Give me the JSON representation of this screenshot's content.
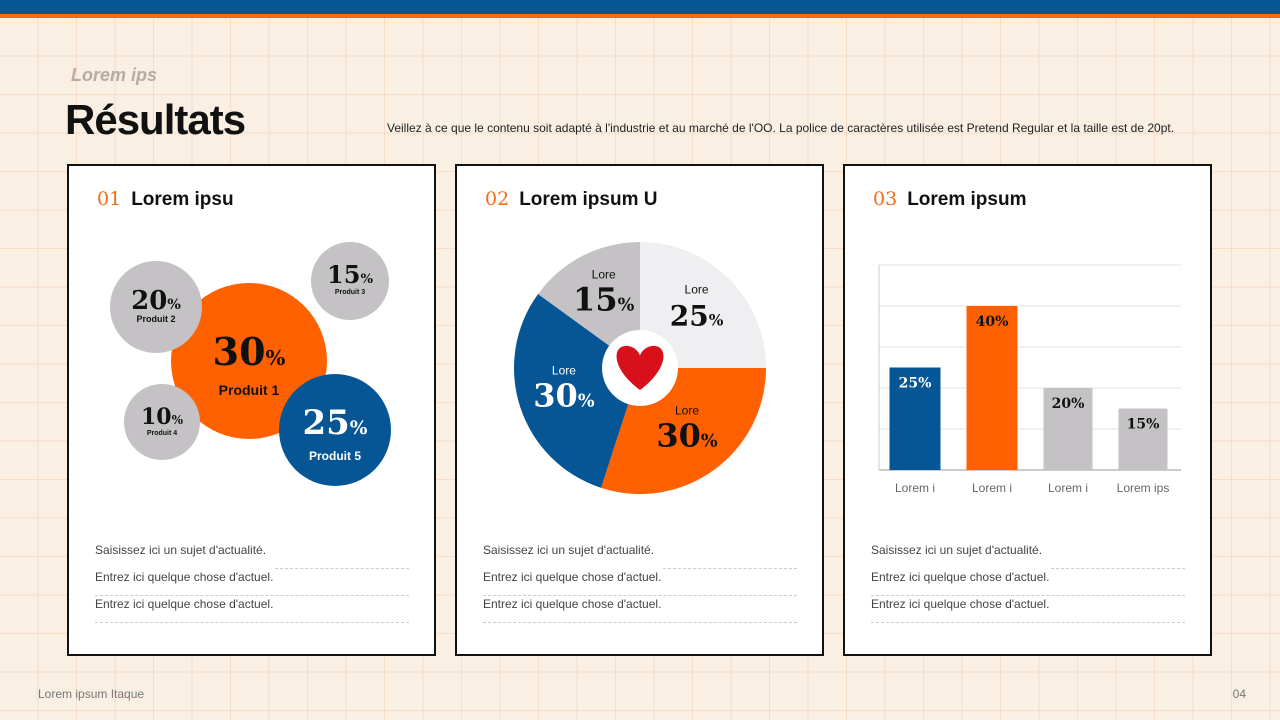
{
  "header": {
    "eyebrow": "Lorem ips",
    "title": "Résultats",
    "description": "Veillez à ce que le contenu soit adapté à l'industrie et au marché de l'OO. La police de caractères utilisée est Pretend Regular et la taille est de 20pt."
  },
  "colors": {
    "blue": "#065696",
    "orange": "#ff6100",
    "gray": "#c4c2c4",
    "light": "#efeef0"
  },
  "cards": [
    {
      "num": "01",
      "title": "Lorem ipsu",
      "notes": [
        "Saisissez ici un sujet d'actualité.",
        "Entrez ici quelque chose d'actuel.",
        "Entrez ici quelque chose d'actuel."
      ]
    },
    {
      "num": "02",
      "title": "Lorem ipsum U",
      "notes": [
        "Saisissez ici un sujet d'actualité.",
        "Entrez ici quelque chose d'actuel.",
        "Entrez ici quelque chose d'actuel."
      ]
    },
    {
      "num": "03",
      "title": "Lorem ipsum",
      "notes": [
        "Saisissez ici un sujet d'actualité.",
        "Entrez ici quelque chose d'actuel.",
        "Entrez ici quelque chose d'actuel."
      ]
    }
  ],
  "chart_data": [
    {
      "type": "bubble",
      "items": [
        {
          "label": "Produit 1",
          "value": "30",
          "color": "orange"
        },
        {
          "label": "Produit 2",
          "value": "20",
          "color": "gray"
        },
        {
          "label": "Produit 3",
          "value": "15",
          "color": "gray"
        },
        {
          "label": "Produit 4",
          "value": "10",
          "color": "gray"
        },
        {
          "label": "Produit 5",
          "value": "25",
          "color": "blue"
        }
      ]
    },
    {
      "type": "pie",
      "center_icon": "heart-icon",
      "slices": [
        {
          "label": "Lore",
          "value": 25,
          "color": "light"
        },
        {
          "label": "Lore",
          "value": 30,
          "color": "orange"
        },
        {
          "label": "Lore",
          "value": 30,
          "color": "blue"
        },
        {
          "label": "Lore",
          "value": 15,
          "color": "gray"
        }
      ]
    },
    {
      "type": "bar",
      "categories": [
        "Lorem i",
        "Lorem i",
        "Lorem i",
        "Lorem ips"
      ],
      "values": [
        25,
        40,
        20,
        15
      ],
      "labels": [
        "25%",
        "40%",
        "20%",
        "15%"
      ],
      "colors": [
        "blue",
        "orange",
        "gray",
        "gray"
      ],
      "ylim": [
        0,
        50
      ],
      "grid": true
    }
  ],
  "footer": {
    "left": "Lorem ipsum Itaque",
    "page": "04"
  }
}
